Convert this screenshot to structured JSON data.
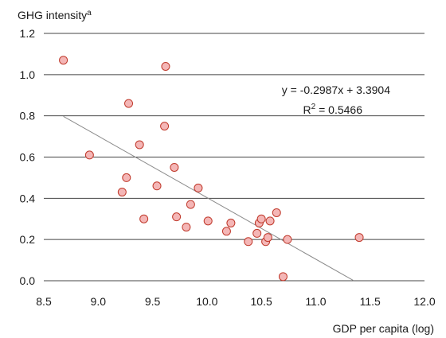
{
  "chart_data": {
    "type": "scatter",
    "ylabel": "GHG intensity",
    "ylabel_superscript": "a",
    "xlabel": "GDP per capita (log)",
    "xlim": [
      8.5,
      12.0
    ],
    "ylim": [
      0.0,
      1.2
    ],
    "x_ticks": [
      "8.5",
      "9.0",
      "9.5",
      "10.0",
      "10.5",
      "11.0",
      "11.5",
      "12.0"
    ],
    "y_ticks": [
      "0.0",
      "0.2",
      "0.4",
      "0.6",
      "0.8",
      "1.0",
      "1.2"
    ],
    "grid": "horizontal",
    "marker_fill": "#f4b6b6",
    "marker_stroke": "#c0392b",
    "gridline_color": "#444444",
    "trendline_color": "#8a8a8a",
    "trendline": {
      "slope": -0.2987,
      "intercept": 3.3904,
      "x_range": [
        8.68,
        11.35
      ],
      "equation_label": "y = -0.2987x + 3.3904",
      "r2_prefix": "R",
      "r2_exponent": "2",
      "r2_suffix": " = 0.5466"
    },
    "points": [
      {
        "x": 8.68,
        "y": 1.07
      },
      {
        "x": 8.92,
        "y": 0.61
      },
      {
        "x": 9.22,
        "y": 0.43
      },
      {
        "x": 9.26,
        "y": 0.5
      },
      {
        "x": 9.28,
        "y": 0.86
      },
      {
        "x": 9.38,
        "y": 0.66
      },
      {
        "x": 9.42,
        "y": 0.3
      },
      {
        "x": 9.54,
        "y": 0.46
      },
      {
        "x": 9.61,
        "y": 0.75
      },
      {
        "x": 9.62,
        "y": 1.04
      },
      {
        "x": 9.7,
        "y": 0.55
      },
      {
        "x": 9.72,
        "y": 0.31
      },
      {
        "x": 9.81,
        "y": 0.26
      },
      {
        "x": 9.85,
        "y": 0.37
      },
      {
        "x": 9.92,
        "y": 0.45
      },
      {
        "x": 10.01,
        "y": 0.29
      },
      {
        "x": 10.18,
        "y": 0.24
      },
      {
        "x": 10.22,
        "y": 0.28
      },
      {
        "x": 10.38,
        "y": 0.19
      },
      {
        "x": 10.46,
        "y": 0.23
      },
      {
        "x": 10.48,
        "y": 0.28
      },
      {
        "x": 10.5,
        "y": 0.3
      },
      {
        "x": 10.54,
        "y": 0.19
      },
      {
        "x": 10.56,
        "y": 0.21
      },
      {
        "x": 10.58,
        "y": 0.29
      },
      {
        "x": 10.64,
        "y": 0.33
      },
      {
        "x": 10.7,
        "y": 0.02
      },
      {
        "x": 10.74,
        "y": 0.2
      },
      {
        "x": 11.4,
        "y": 0.21
      }
    ]
  }
}
